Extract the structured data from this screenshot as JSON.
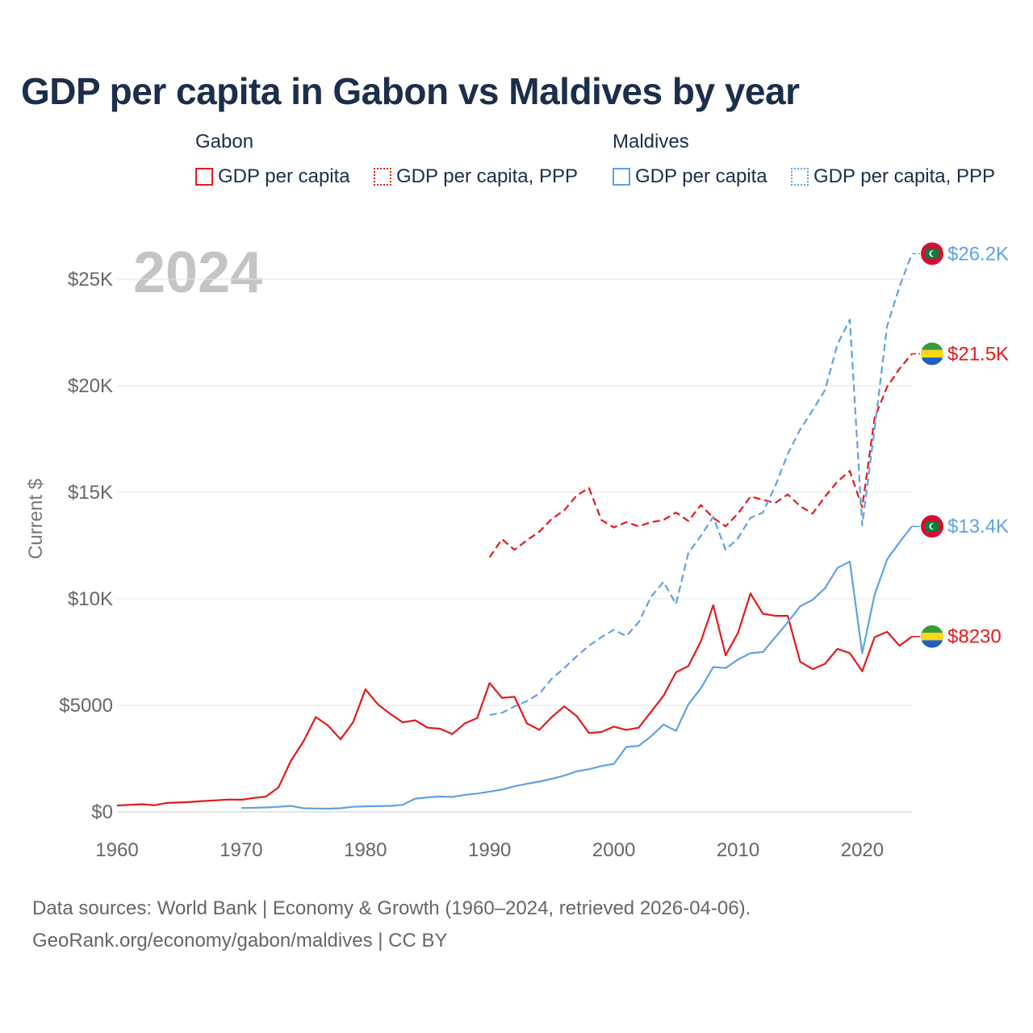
{
  "title": "GDP per capita in Gabon vs Maldives by year",
  "legend": {
    "groups": [
      {
        "name": "Gabon",
        "items": [
          {
            "label": "GDP per capita",
            "color": "#e31a1c",
            "style": "solid"
          },
          {
            "label": "GDP per capita, PPP",
            "color": "#e31a1c",
            "style": "dotted"
          }
        ]
      },
      {
        "name": "Maldives",
        "items": [
          {
            "label": "GDP per capita",
            "color": "#5fa2e4",
            "style": "solid"
          },
          {
            "label": "GDP per capita, PPP",
            "color": "#5fa2e4",
            "style": "dotted"
          }
        ]
      }
    ]
  },
  "sources": {
    "line1": "Data sources: World Bank | Economy & Growth (1960–2024, retrieved 2026-04-06).",
    "line2": "GeoRank.org/economy/gabon/maldives | CC BY"
  },
  "chart_data": {
    "type": "line",
    "year_label": "2024",
    "ylabel": "Current $",
    "xlim": [
      1960,
      2024
    ],
    "ylim": [
      0,
      27000
    ],
    "xticks": [
      1960,
      1970,
      1980,
      1990,
      2000,
      2010,
      2020
    ],
    "yticks": [
      {
        "value": 0,
        "label": "$0"
      },
      {
        "value": 5000,
        "label": "$5000"
      },
      {
        "value": 10000,
        "label": "$10K"
      },
      {
        "value": 15000,
        "label": "$15K"
      },
      {
        "value": 20000,
        "label": "$20K"
      },
      {
        "value": 25000,
        "label": "$25K"
      }
    ],
    "series": [
      {
        "name": "Gabon GDP per capita",
        "country": "gabon",
        "color": "#e31a1c",
        "dashed": false,
        "start": 1960,
        "values": [
          300,
          330,
          360,
          310,
          420,
          440,
          470,
          510,
          540,
          580,
          570,
          650,
          720,
          1150,
          2400,
          3300,
          4450,
          4050,
          3400,
          4200,
          5750,
          5050,
          4600,
          4200,
          4300,
          3950,
          3900,
          3650,
          4150,
          4400,
          6050,
          5350,
          5400,
          4150,
          3850,
          4450,
          4950,
          4500,
          3700,
          3750,
          4000,
          3850,
          3950,
          4700,
          5450,
          6550,
          6850,
          8000,
          9700,
          7350,
          8400,
          10250,
          9300,
          9200,
          9200,
          7050,
          6700,
          6950,
          7650,
          7450,
          6600,
          8200,
          8450,
          7800,
          8230
        ],
        "end_label": "$8230"
      },
      {
        "name": "Gabon GDP per capita, PPP",
        "country": "gabon",
        "color": "#e31a1c",
        "dashed": true,
        "start": 1990,
        "values": [
          11950,
          12800,
          12300,
          12750,
          13150,
          13750,
          14150,
          14850,
          15200,
          13700,
          13350,
          13600,
          13400,
          13600,
          13700,
          14050,
          13650,
          14400,
          13800,
          13400,
          14000,
          14800,
          14650,
          14500,
          14900,
          14350,
          14000,
          14800,
          15500,
          16000,
          14300,
          18500,
          19950,
          20800,
          21500
        ],
        "end_label": "$21.5K"
      },
      {
        "name": "Maldives GDP per capita",
        "country": "maldives",
        "color": "#5fa2e4",
        "dashed": false,
        "start": 1970,
        "values": [
          180,
          190,
          210,
          240,
          280,
          170,
          160,
          150,
          170,
          240,
          260,
          270,
          280,
          330,
          620,
          680,
          720,
          700,
          800,
          860,
          950,
          1050,
          1200,
          1320,
          1420,
          1550,
          1700,
          1900,
          2000,
          2150,
          2250,
          3050,
          3100,
          3550,
          4100,
          3800,
          5050,
          5800,
          6800,
          6750,
          7150,
          7450,
          7500,
          8200,
          8900,
          9650,
          9950,
          10500,
          11450,
          11750,
          7450,
          10200,
          11850,
          12650,
          13400
        ],
        "end_label": "$13.4K"
      },
      {
        "name": "Maldives GDP per capita, PPP",
        "country": "maldives",
        "color": "#5fa2e4",
        "dashed": true,
        "start": 1990,
        "values": [
          4550,
          4650,
          4950,
          5200,
          5550,
          6250,
          6750,
          7300,
          7800,
          8200,
          8550,
          8250,
          8900,
          10100,
          10800,
          9750,
          12150,
          12950,
          13850,
          12300,
          12850,
          13800,
          14050,
          15300,
          16800,
          17950,
          18850,
          19800,
          21950,
          23100,
          13450,
          18000,
          22800,
          24650,
          26200
        ],
        "end_label": "$26.2K"
      }
    ]
  }
}
